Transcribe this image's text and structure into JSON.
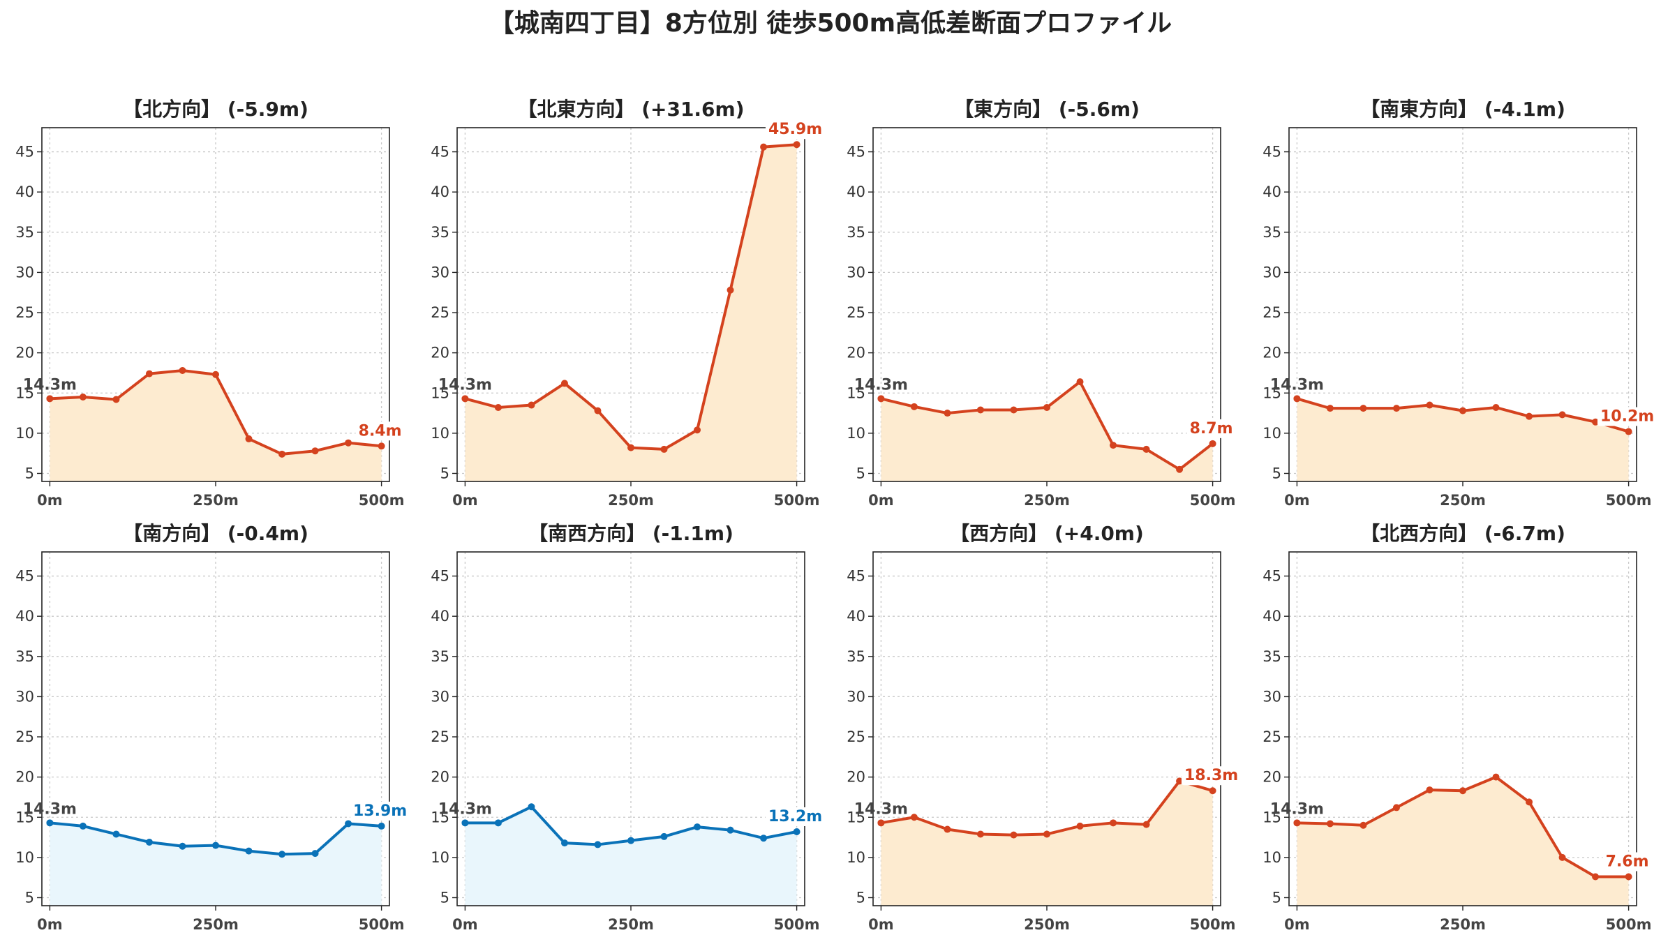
{
  "title": "【城南四丁目】8方位別 徒歩500m高低差断面プロファイル",
  "colors": {
    "up_line": "#d4421e",
    "up_fill": "#fdebd0",
    "down_line": "#0a72b8",
    "down_fill": "#e9f6fc",
    "grid": "#c8c8c8"
  },
  "chart_data": [
    {
      "type": "area",
      "title": "【北方向】 (-5.9m)",
      "trend": "up",
      "x": [
        0,
        50,
        100,
        150,
        200,
        250,
        300,
        350,
        400,
        450,
        500
      ],
      "y": [
        14.3,
        14.5,
        14.2,
        17.4,
        17.8,
        17.3,
        9.3,
        7.4,
        7.8,
        8.8,
        8.4
      ],
      "start_label": "14.3m",
      "end_label": "8.4m",
      "xticks": [
        "0m",
        "250m",
        "500m"
      ],
      "yticks": [
        5,
        10,
        15,
        20,
        25,
        30,
        35,
        40,
        45
      ],
      "ylim": [
        4,
        48
      ],
      "xlim": [
        -12,
        512
      ],
      "grid": true
    },
    {
      "type": "area",
      "title": "【北東方向】 (+31.6m)",
      "trend": "up",
      "x": [
        0,
        50,
        100,
        150,
        200,
        250,
        300,
        350,
        400,
        450,
        500
      ],
      "y": [
        14.3,
        13.2,
        13.5,
        16.2,
        12.8,
        8.2,
        8.0,
        10.4,
        27.8,
        45.6,
        45.9
      ],
      "start_label": "14.3m",
      "end_label": "45.9m",
      "xticks": [
        "0m",
        "250m",
        "500m"
      ],
      "yticks": [
        5,
        10,
        15,
        20,
        25,
        30,
        35,
        40,
        45
      ],
      "ylim": [
        4,
        48
      ],
      "xlim": [
        -12,
        512
      ],
      "grid": true
    },
    {
      "type": "area",
      "title": "【東方向】 (-5.6m)",
      "trend": "up",
      "x": [
        0,
        50,
        100,
        150,
        200,
        250,
        300,
        350,
        400,
        450,
        500
      ],
      "y": [
        14.3,
        13.3,
        12.5,
        12.9,
        12.9,
        13.2,
        16.4,
        8.5,
        8.0,
        5.5,
        8.7
      ],
      "start_label": "14.3m",
      "end_label": "8.7m",
      "xticks": [
        "0m",
        "250m",
        "500m"
      ],
      "yticks": [
        5,
        10,
        15,
        20,
        25,
        30,
        35,
        40,
        45
      ],
      "ylim": [
        4,
        48
      ],
      "xlim": [
        -12,
        512
      ],
      "grid": true
    },
    {
      "type": "area",
      "title": "【南東方向】 (-4.1m)",
      "trend": "up",
      "x": [
        0,
        50,
        100,
        150,
        200,
        250,
        300,
        350,
        400,
        450,
        500
      ],
      "y": [
        14.3,
        13.1,
        13.1,
        13.1,
        13.5,
        12.8,
        13.2,
        12.1,
        12.3,
        11.4,
        10.2
      ],
      "start_label": "14.3m",
      "end_label": "10.2m",
      "xticks": [
        "0m",
        "250m",
        "500m"
      ],
      "yticks": [
        5,
        10,
        15,
        20,
        25,
        30,
        35,
        40,
        45
      ],
      "ylim": [
        4,
        48
      ],
      "xlim": [
        -12,
        512
      ],
      "grid": true
    },
    {
      "type": "area",
      "title": "【南方向】 (-0.4m)",
      "trend": "down",
      "x": [
        0,
        50,
        100,
        150,
        200,
        250,
        300,
        350,
        400,
        450,
        500
      ],
      "y": [
        14.3,
        13.9,
        12.9,
        11.9,
        11.4,
        11.5,
        10.8,
        10.4,
        10.5,
        14.2,
        13.9
      ],
      "start_label": "14.3m",
      "end_label": "13.9m",
      "xticks": [
        "0m",
        "250m",
        "500m"
      ],
      "yticks": [
        5,
        10,
        15,
        20,
        25,
        30,
        35,
        40,
        45
      ],
      "ylim": [
        4,
        48
      ],
      "xlim": [
        -12,
        512
      ],
      "grid": true
    },
    {
      "type": "area",
      "title": "【南西方向】 (-1.1m)",
      "trend": "down",
      "x": [
        0,
        50,
        100,
        150,
        200,
        250,
        300,
        350,
        400,
        450,
        500
      ],
      "y": [
        14.3,
        14.3,
        16.3,
        11.8,
        11.6,
        12.1,
        12.6,
        13.8,
        13.4,
        12.4,
        13.2
      ],
      "start_label": "14.3m",
      "end_label": "13.2m",
      "xticks": [
        "0m",
        "250m",
        "500m"
      ],
      "yticks": [
        5,
        10,
        15,
        20,
        25,
        30,
        35,
        40,
        45
      ],
      "ylim": [
        4,
        48
      ],
      "xlim": [
        -12,
        512
      ],
      "grid": true
    },
    {
      "type": "area",
      "title": "【西方向】 (+4.0m)",
      "trend": "up",
      "x": [
        0,
        50,
        100,
        150,
        200,
        250,
        300,
        350,
        400,
        450,
        500
      ],
      "y": [
        14.3,
        15.0,
        13.5,
        12.9,
        12.8,
        12.9,
        13.9,
        14.3,
        14.1,
        19.5,
        18.3
      ],
      "start_label": "14.3m",
      "end_label": "18.3m",
      "xticks": [
        "0m",
        "250m",
        "500m"
      ],
      "yticks": [
        5,
        10,
        15,
        20,
        25,
        30,
        35,
        40,
        45
      ],
      "ylim": [
        4,
        48
      ],
      "xlim": [
        -12,
        512
      ],
      "grid": true
    },
    {
      "type": "area",
      "title": "【北西方向】 (-6.7m)",
      "trend": "up",
      "x": [
        0,
        50,
        100,
        150,
        200,
        250,
        300,
        350,
        400,
        450,
        500
      ],
      "y": [
        14.3,
        14.2,
        14.0,
        16.2,
        18.4,
        18.3,
        20.0,
        16.9,
        10.0,
        7.6,
        7.6
      ],
      "start_label": "14.3m",
      "end_label": "7.6m",
      "xticks": [
        "0m",
        "250m",
        "500m"
      ],
      "yticks": [
        5,
        10,
        15,
        20,
        25,
        30,
        35,
        40,
        45
      ],
      "ylim": [
        4,
        48
      ],
      "xlim": [
        -12,
        512
      ],
      "grid": true
    }
  ]
}
